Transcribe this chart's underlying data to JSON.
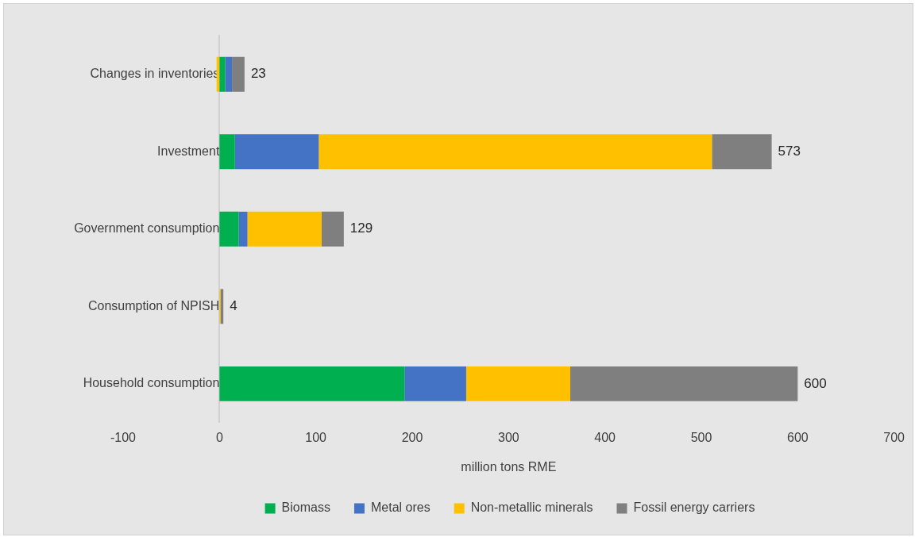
{
  "chart_data": {
    "type": "bar",
    "orientation": "horizontal",
    "stacked": true,
    "xlabel": "million tons RME",
    "categories": [
      "Changes in inventories",
      "Investment",
      "Government consumption",
      "Consumption of NPISH",
      "Household consumption"
    ],
    "series": [
      {
        "name": "Biomass",
        "color": "#00b050",
        "values": [
          6,
          16,
          20,
          0,
          192
        ]
      },
      {
        "name": "Metal ores",
        "color": "#4472c4",
        "values": [
          7,
          87,
          9,
          0,
          64
        ]
      },
      {
        "name": "Non-metallic minerals",
        "color": "#ffc000",
        "values": [
          -3,
          408,
          77,
          1,
          108
        ]
      },
      {
        "name": "Fossil energy carriers",
        "color": "#7f7f7f",
        "values": [
          13,
          62,
          23,
          3,
          236
        ]
      }
    ],
    "totals": [
      "23",
      "573",
      "129",
      "4",
      "600"
    ],
    "xlim": [
      -100,
      700
    ],
    "xticks": [
      -100,
      0,
      100,
      200,
      300,
      400,
      500,
      600,
      700
    ],
    "grid": false,
    "legend": "bottom"
  }
}
